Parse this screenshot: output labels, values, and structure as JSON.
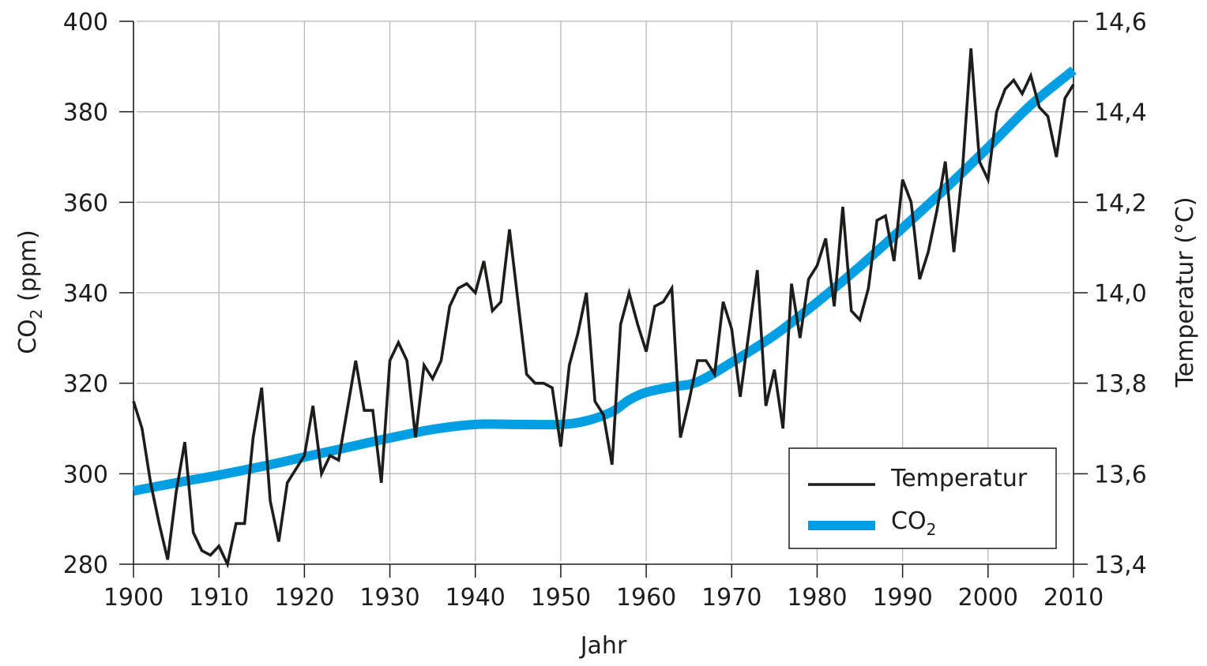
{
  "chart_data": {
    "type": "line",
    "title": "",
    "xlabel": "Jahr",
    "ylabel_left": "CO2 (ppm)",
    "ylabel_right": "Temperatur (°C)",
    "xlim": [
      1900,
      2010
    ],
    "ylim_left": [
      280,
      400
    ],
    "ylim_right": [
      13.4,
      14.6
    ],
    "grid": true,
    "legend_position": "bottom-right",
    "x_ticks": [
      "1900",
      "1910",
      "1920",
      "1930",
      "1940",
      "1950",
      "1960",
      "1970",
      "1980",
      "1990",
      "2000",
      "2010"
    ],
    "y_left_ticks": [
      "280",
      "300",
      "320",
      "340",
      "360",
      "380",
      "400"
    ],
    "y_right_ticks": [
      "13,4",
      "13,6",
      "13,8",
      "14,0",
      "14,2",
      "14,4",
      "14,6"
    ],
    "series": [
      {
        "name": "Temperatur",
        "axis": "right",
        "color": "#1d1d1b",
        "x": [
          1900,
          1901,
          1902,
          1903,
          1904,
          1905,
          1906,
          1907,
          1908,
          1909,
          1910,
          1911,
          1912,
          1913,
          1914,
          1915,
          1916,
          1917,
          1918,
          1919,
          1920,
          1921,
          1922,
          1923,
          1924,
          1925,
          1926,
          1927,
          1928,
          1929,
          1930,
          1931,
          1932,
          1933,
          1934,
          1935,
          1936,
          1937,
          1938,
          1939,
          1940,
          1941,
          1942,
          1943,
          1944,
          1945,
          1946,
          1947,
          1948,
          1949,
          1950,
          1951,
          1952,
          1953,
          1954,
          1955,
          1956,
          1957,
          1958,
          1959,
          1960,
          1961,
          1962,
          1963,
          1964,
          1965,
          1966,
          1967,
          1968,
          1969,
          1970,
          1971,
          1972,
          1973,
          1974,
          1975,
          1976,
          1977,
          1978,
          1979,
          1980,
          1981,
          1982,
          1983,
          1984,
          1985,
          1986,
          1987,
          1988,
          1989,
          1990,
          1991,
          1992,
          1993,
          1994,
          1995,
          1996,
          1997,
          1998,
          1999,
          2000,
          2001,
          2002,
          2003,
          2004,
          2005,
          2006,
          2007,
          2008,
          2009,
          2010
        ],
        "values": [
          13.76,
          13.7,
          13.58,
          13.49,
          13.41,
          13.56,
          13.67,
          13.47,
          13.43,
          13.42,
          13.44,
          13.4,
          13.49,
          13.49,
          13.68,
          13.79,
          13.54,
          13.45,
          13.58,
          13.61,
          13.64,
          13.75,
          13.6,
          13.64,
          13.63,
          13.74,
          13.85,
          13.74,
          13.74,
          13.58,
          13.85,
          13.89,
          13.85,
          13.68,
          13.84,
          13.81,
          13.85,
          13.97,
          14.01,
          14.02,
          14.0,
          14.07,
          13.96,
          13.98,
          14.14,
          13.98,
          13.82,
          13.8,
          13.8,
          13.79,
          13.66,
          13.84,
          13.91,
          14.0,
          13.76,
          13.73,
          13.62,
          13.93,
          14.0,
          13.93,
          13.87,
          13.97,
          13.98,
          14.01,
          13.68,
          13.76,
          13.85,
          13.85,
          13.82,
          13.98,
          13.92,
          13.77,
          13.91,
          14.05,
          13.75,
          13.83,
          13.7,
          14.02,
          13.9,
          14.03,
          14.06,
          14.12,
          13.97,
          14.19,
          13.96,
          13.94,
          14.01,
          14.16,
          14.17,
          14.07,
          14.25,
          14.2,
          14.03,
          14.09,
          14.18,
          14.29,
          14.09,
          14.27,
          14.54,
          14.29,
          14.25,
          14.4,
          14.45,
          14.47,
          14.44,
          14.48,
          14.41,
          14.39,
          14.3,
          14.43,
          14.46
        ]
      },
      {
        "name": "CO2",
        "axis": "left",
        "color": "#009fe3",
        "x": [
          1900,
          1905,
          1910,
          1915,
          1920,
          1925,
          1930,
          1935,
          1940,
          1945,
          1950,
          1953,
          1956,
          1958,
          1960,
          1963,
          1966,
          1970,
          1975,
          1980,
          1985,
          1990,
          1995,
          2000,
          2005,
          2010
        ],
        "values": [
          296.2,
          298.0,
          299.7,
          301.6,
          303.7,
          305.8,
          307.9,
          309.8,
          310.9,
          310.9,
          310.9,
          311.7,
          313.7,
          316.3,
          318.0,
          319.2,
          320.3,
          324.6,
          330.6,
          337.9,
          345.8,
          354.3,
          363.0,
          372.1,
          381.5,
          389.2
        ]
      }
    ]
  },
  "labels": {
    "xlabel": "Jahr",
    "ylabel_left_main": "CO",
    "ylabel_left_sub": "2",
    "ylabel_left_suffix": " (ppm)",
    "ylabel_right": "Temperatur (°C)",
    "legend_temperature": "Temperatur",
    "legend_co2_main": "CO",
    "legend_co2_sub": "2"
  }
}
